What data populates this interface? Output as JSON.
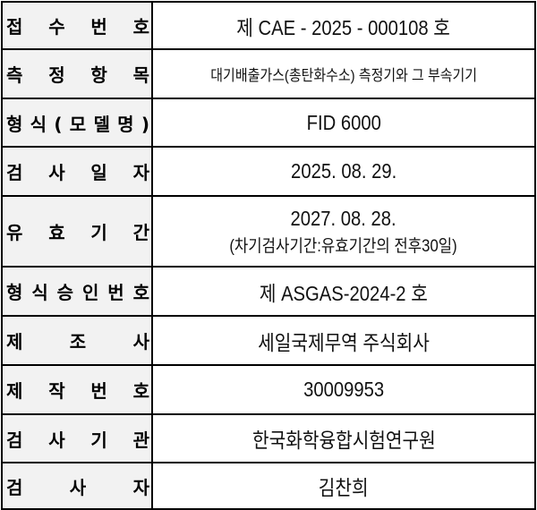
{
  "rows": [
    {
      "label": "접 수 번 호",
      "value": "제 CAE - 2025 - 000108 호"
    },
    {
      "label": "측 정 항 목",
      "value": "대기배출가스(총탄화수소) 측정기와 그 부속기기"
    },
    {
      "label": "형 식 ( 모 델 명 )",
      "value": "FID 6000"
    },
    {
      "label": "검 사 일 자",
      "value": "2025. 08. 29."
    },
    {
      "label": "유 효 기 간",
      "value": "2027. 08. 28.",
      "note": "(차기검사기간:유효기간의 전후30일)"
    },
    {
      "label": "형 식 승 인 번 호",
      "value": "제 ASGAS-2024-2 호"
    },
    {
      "label": "제 조 사",
      "value": "세일국제무역 주식회사"
    },
    {
      "label": "제 작 번 호",
      "value": "30009953"
    },
    {
      "label": "검 사 기 관",
      "value": "한국화학융합시험연구원"
    },
    {
      "label": "검 사 자",
      "value": "김찬희"
    }
  ]
}
